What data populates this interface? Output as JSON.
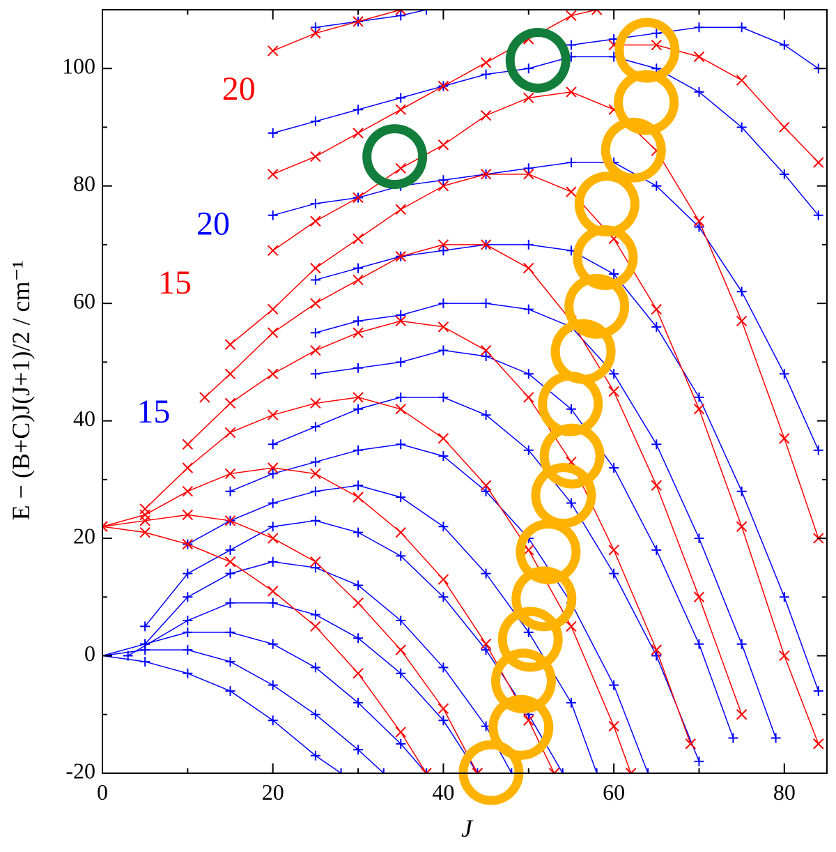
{
  "chart_data": {
    "type": "scatter",
    "xlabel": "J",
    "ylabel": "E − (B+C)J(J+1)/2  /  cm⁻¹",
    "xlim": [
      0,
      85
    ],
    "ylim": [
      -20,
      110
    ],
    "xticks": [
      0,
      20,
      40,
      60,
      80
    ],
    "yticks": [
      -20,
      0,
      20,
      40,
      60,
      80,
      100
    ],
    "xminorticks": [
      10,
      30,
      50,
      70
    ],
    "yminorticks": [
      -10,
      10,
      30,
      50,
      70,
      90
    ],
    "series": [
      {
        "color": "#0000ff",
        "marker": "plus",
        "x": [
          0,
          5,
          10,
          15,
          20,
          25,
          28
        ],
        "values": [
          0,
          -1,
          -3,
          -6,
          -11,
          -17,
          -20
        ]
      },
      {
        "color": "#0000ff",
        "marker": "plus",
        "x": [
          0,
          5,
          10,
          15,
          20,
          25,
          30,
          33
        ],
        "values": [
          0,
          1,
          1,
          -1,
          -5,
          -10,
          -16,
          -20
        ]
      },
      {
        "color": "#0000ff",
        "marker": "plus",
        "x": [
          0,
          5,
          10,
          15,
          20,
          25,
          30,
          35,
          38
        ],
        "values": [
          0,
          2,
          4,
          4,
          2,
          -2,
          -8,
          -15,
          -20
        ]
      },
      {
        "color": "#0000ff",
        "marker": "plus",
        "x": [
          3,
          10,
          15,
          20,
          25,
          30,
          35,
          40,
          44
        ],
        "values": [
          0,
          6,
          9,
          9,
          7,
          3,
          -3,
          -11,
          -20
        ]
      },
      {
        "color": "#0000ff",
        "marker": "plus",
        "x": [
          5,
          10,
          15,
          20,
          25,
          30,
          35,
          40,
          45,
          48
        ],
        "values": [
          2,
          10,
          14,
          16,
          15,
          12,
          6,
          -2,
          -12,
          -20
        ]
      },
      {
        "color": "#0000ff",
        "marker": "plus",
        "x": [
          5,
          10,
          15,
          20,
          25,
          30,
          35,
          40,
          45,
          50,
          54
        ],
        "values": [
          5,
          14,
          18,
          22,
          23,
          21,
          17,
          10,
          1,
          -10,
          -20
        ]
      },
      {
        "color": "#0000ff",
        "marker": "plus",
        "x": [
          10,
          15,
          20,
          25,
          30,
          35,
          40,
          45,
          50,
          55,
          58
        ],
        "values": [
          19,
          23,
          26,
          28,
          29,
          27,
          22,
          14,
          4,
          -8,
          -20
        ]
      },
      {
        "color": "#0000ff",
        "marker": "plus",
        "x": [
          15,
          20,
          25,
          30,
          35,
          40,
          45,
          50,
          55,
          60,
          64
        ],
        "values": [
          28,
          31,
          33,
          35,
          36,
          34,
          28,
          20,
          9,
          -5,
          -20
        ]
      },
      {
        "color": "#0000ff",
        "marker": "plus",
        "x": [
          20,
          25,
          30,
          35,
          40,
          45,
          50,
          55,
          60,
          65,
          70
        ],
        "values": [
          36,
          39,
          42,
          44,
          44,
          41,
          35,
          26,
          14,
          0,
          -18
        ]
      },
      {
        "color": "#0000ff",
        "marker": "plus",
        "x": [
          25,
          30,
          35,
          40,
          45,
          50,
          55,
          60,
          65,
          70,
          74
        ],
        "values": [
          48,
          49,
          50,
          52,
          51,
          48,
          42,
          32,
          18,
          2,
          -14
        ]
      },
      {
        "color": "#0000ff",
        "marker": "plus",
        "x": [
          25,
          30,
          35,
          40,
          45,
          50,
          55,
          60,
          65,
          70,
          75,
          79
        ],
        "values": [
          55,
          57,
          58,
          60,
          60,
          59,
          56,
          48,
          36,
          20,
          2,
          -14
        ]
      },
      {
        "color": "#0000ff",
        "marker": "plus",
        "x": [
          25,
          30,
          35,
          40,
          45,
          50,
          55,
          60,
          65,
          70,
          75,
          80,
          84
        ],
        "values": [
          64,
          66,
          68,
          69,
          70,
          70,
          69,
          65,
          56,
          44,
          28,
          10,
          -6
        ]
      },
      {
        "color": "#0000ff",
        "marker": "plus",
        "x": [
          20,
          25,
          30,
          35,
          40,
          45,
          50,
          55,
          60,
          65,
          70,
          75,
          80,
          84
        ],
        "values": [
          75,
          77,
          78,
          80,
          81,
          82,
          83,
          84,
          84,
          80,
          73,
          62,
          48,
          35
        ]
      },
      {
        "color": "#0000ff",
        "marker": "plus",
        "x": [
          20,
          25,
          30,
          35,
          40,
          45,
          50,
          55,
          60,
          65,
          70,
          75,
          80,
          84
        ],
        "values": [
          89,
          91,
          93,
          95,
          97,
          99,
          100,
          102,
          102,
          100,
          96,
          90,
          82,
          75
        ]
      },
      {
        "color": "#0000ff",
        "marker": "plus",
        "x": [
          25,
          30,
          35,
          38
        ],
        "values": [
          107,
          108,
          109,
          110
        ]
      },
      {
        "color": "#0000ff",
        "marker": "plus",
        "x": [
          55,
          60,
          65,
          70,
          75,
          80,
          84
        ],
        "values": [
          104,
          105,
          106,
          107,
          107,
          104,
          100
        ]
      },
      {
        "color": "#ff0000",
        "marker": "cross",
        "x": [
          0,
          5,
          10,
          15,
          20,
          25,
          30,
          35,
          38
        ],
        "values": [
          22,
          21,
          19,
          16,
          11,
          5,
          -3,
          -13,
          -20
        ]
      },
      {
        "color": "#ff0000",
        "marker": "cross",
        "x": [
          0,
          5,
          10,
          15,
          20,
          25,
          30,
          35,
          40,
          44
        ],
        "values": [
          22,
          23,
          24,
          23,
          20,
          16,
          9,
          1,
          -9,
          -20
        ]
      },
      {
        "color": "#ff0000",
        "marker": "cross",
        "x": [
          0,
          5,
          10,
          15,
          20,
          25,
          30,
          35,
          40,
          45,
          50,
          53
        ],
        "values": [
          22,
          24,
          28,
          31,
          32,
          31,
          27,
          21,
          13,
          2,
          -11,
          -20
        ]
      },
      {
        "color": "#ff0000",
        "marker": "cross",
        "x": [
          5,
          10,
          15,
          20,
          25,
          30,
          35,
          40,
          45,
          50,
          55,
          60,
          62
        ],
        "values": [
          25,
          32,
          38,
          41,
          43,
          44,
          42,
          37,
          29,
          18,
          5,
          -12,
          -20
        ]
      },
      {
        "color": "#ff0000",
        "marker": "cross",
        "x": [
          10,
          15,
          20,
          25,
          30,
          35,
          40,
          45,
          50,
          55,
          60,
          65,
          69
        ],
        "values": [
          36,
          43,
          48,
          52,
          55,
          57,
          56,
          52,
          44,
          33,
          18,
          1,
          -15
        ]
      },
      {
        "color": "#ff0000",
        "marker": "cross",
        "x": [
          12,
          15,
          20,
          25,
          30,
          35,
          40,
          45,
          50,
          55,
          60,
          65,
          70,
          75
        ],
        "values": [
          44,
          48,
          55,
          60,
          64,
          68,
          70,
          70,
          66,
          57,
          45,
          29,
          10,
          -10
        ]
      },
      {
        "color": "#ff0000",
        "marker": "cross",
        "x": [
          15,
          20,
          25,
          30,
          35,
          40,
          45,
          50,
          55,
          60,
          65,
          70,
          75,
          80,
          84
        ],
        "values": [
          53,
          59,
          66,
          71,
          76,
          80,
          82,
          82,
          79,
          71,
          59,
          42,
          22,
          0,
          -15
        ]
      },
      {
        "color": "#ff0000",
        "marker": "cross",
        "x": [
          20,
          25,
          30,
          35,
          40,
          45,
          50,
          55,
          60,
          65,
          70,
          75,
          80,
          84
        ],
        "values": [
          69,
          74,
          78,
          83,
          87,
          92,
          95,
          96,
          93,
          86,
          74,
          57,
          37,
          20
        ]
      },
      {
        "color": "#ff0000",
        "marker": "cross",
        "x": [
          20,
          25,
          30,
          35,
          40,
          45,
          50,
          55,
          58
        ],
        "values": [
          82,
          85,
          89,
          93,
          97,
          101,
          105,
          109,
          110
        ]
      },
      {
        "color": "#ff0000",
        "marker": "cross",
        "x": [
          60,
          65,
          70,
          75,
          80,
          84
        ],
        "values": [
          104,
          104,
          102,
          98,
          90,
          84
        ]
      },
      {
        "color": "#ff0000",
        "marker": "cross",
        "x": [
          20,
          25,
          30,
          35
        ],
        "values": [
          103,
          106,
          108,
          110
        ]
      }
    ],
    "annotations": [
      {
        "text": "20",
        "x": 16,
        "y": 96,
        "color": "#ff0000"
      },
      {
        "text": "20",
        "x": 13,
        "y": 73,
        "color": "#0000ff"
      },
      {
        "text": "15",
        "x": 8.5,
        "y": 63,
        "color": "#ff0000"
      },
      {
        "text": "15",
        "x": 6,
        "y": 41,
        "color": "#0000ff"
      }
    ],
    "highlights": [
      {
        "color": "#ffb300",
        "x": [
          63.9,
          63.8,
          62.3,
          59.2,
          59.0,
          58.0,
          56.4,
          54.9,
          55.1,
          54.1,
          52.3,
          51.8,
          50.2,
          49.4,
          49.1,
          45.6
        ],
        "values": [
          103.1,
          94.2,
          86.1,
          76.9,
          67.8,
          59.5,
          51.8,
          42.9,
          34.0,
          27.3,
          17.7,
          9.7,
          2.8,
          -4.3,
          -12.2,
          -19.9
        ]
      },
      {
        "color": "#137d3c",
        "x": [
          34.3,
          51.1
        ],
        "values": [
          85.0,
          101.4
        ]
      }
    ]
  }
}
